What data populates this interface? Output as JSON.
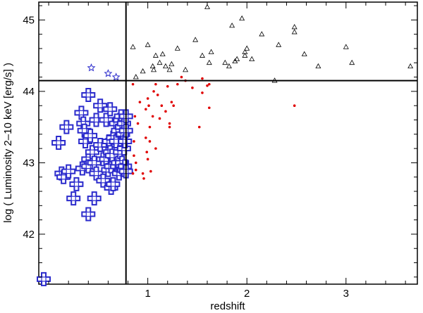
{
  "chart_data": {
    "type": "scatter",
    "title": "",
    "xlabel": "redshift",
    "ylabel": "log ( Luminosity 2–10 keV [erg/s] )",
    "xlim": [
      -0.1,
      3.72
    ],
    "ylim": [
      41.3,
      45.25
    ],
    "x_ticks": [
      1,
      2,
      3
    ],
    "x_tick_labels": [
      "1",
      "2",
      "3"
    ],
    "y_ticks": [
      42,
      43,
      44,
      45
    ],
    "y_tick_labels": [
      "42",
      "43",
      "44",
      "45"
    ],
    "grid": false,
    "legend": "none",
    "reference_lines": {
      "vertical_x": 0.78,
      "horizontal_y": 44.15,
      "color": "#000000"
    },
    "series": [
      {
        "marker": "cross-square",
        "color": "#2b2bcc",
        "points": [
          [
            -0.05,
            41.37
          ],
          [
            0.1,
            43.28
          ],
          [
            0.18,
            43.5
          ],
          [
            0.13,
            42.85
          ],
          [
            0.15,
            42.8
          ],
          [
            0.2,
            42.88
          ],
          [
            0.25,
            42.5
          ],
          [
            0.28,
            42.7
          ],
          [
            0.33,
            43.7
          ],
          [
            0.35,
            43.55
          ],
          [
            0.36,
            43.45
          ],
          [
            0.37,
            43.3
          ],
          [
            0.34,
            42.92
          ],
          [
            0.4,
            43.95
          ],
          [
            0.4,
            43.05
          ],
          [
            0.4,
            42.28
          ],
          [
            0.4,
            42.95
          ],
          [
            0.42,
            43.38
          ],
          [
            0.44,
            43.15
          ],
          [
            0.46,
            43.0
          ],
          [
            0.46,
            42.5
          ],
          [
            0.48,
            43.6
          ],
          [
            0.48,
            42.85
          ],
          [
            0.52,
            43.8
          ],
          [
            0.52,
            43.25
          ],
          [
            0.55,
            43.05
          ],
          [
            0.55,
            42.75
          ],
          [
            0.58,
            43.6
          ],
          [
            0.58,
            43.05
          ],
          [
            0.6,
            43.25
          ],
          [
            0.6,
            42.9
          ],
          [
            0.61,
            43.3
          ],
          [
            0.62,
            43.75
          ],
          [
            0.62,
            43.15
          ],
          [
            0.63,
            42.65
          ],
          [
            0.63,
            42.95
          ],
          [
            0.64,
            43.1
          ],
          [
            0.65,
            42.7
          ],
          [
            0.65,
            43.35
          ],
          [
            0.68,
            43.55
          ],
          [
            0.68,
            43.3
          ],
          [
            0.69,
            42.95
          ],
          [
            0.7,
            43.0
          ],
          [
            0.7,
            43.45
          ],
          [
            0.71,
            42.85
          ],
          [
            0.72,
            43.15
          ],
          [
            0.72,
            43.6
          ],
          [
            0.73,
            43.65
          ],
          [
            0.74,
            43.5
          ],
          [
            0.74,
            43.0
          ],
          [
            0.75,
            42.9
          ],
          [
            0.75,
            43.4
          ],
          [
            0.76,
            42.9
          ],
          [
            0.76,
            43.2
          ],
          [
            0.76,
            43.55
          ],
          [
            0.77,
            43.3
          ],
          [
            0.77,
            42.95
          ],
          [
            0.78,
            43.45
          ],
          [
            0.78,
            43.65
          ],
          [
            0.78,
            42.88
          ]
        ]
      },
      {
        "marker": "star",
        "color": "#2b2bcc",
        "points": [
          [
            0.43,
            44.33
          ],
          [
            0.6,
            44.25
          ],
          [
            0.68,
            44.2
          ]
        ]
      },
      {
        "marker": "dot",
        "color": "#e00000",
        "points": [
          [
            0.85,
            44.1
          ],
          [
            0.86,
            43.1
          ],
          [
            0.87,
            43.65
          ],
          [
            0.86,
            43.3
          ],
          [
            0.85,
            42.85
          ],
          [
            0.88,
            43.0
          ],
          [
            0.88,
            42.9
          ],
          [
            0.9,
            43.55
          ],
          [
            0.92,
            43.85
          ],
          [
            0.95,
            42.85
          ],
          [
            0.96,
            42.78
          ],
          [
            0.98,
            43.75
          ],
          [
            0.98,
            43.35
          ],
          [
            0.99,
            43.15
          ],
          [
            1.0,
            43.05
          ],
          [
            1.0,
            43.9
          ],
          [
            1.01,
            43.8
          ],
          [
            1.02,
            43.5
          ],
          [
            1.02,
            43.3
          ],
          [
            1.03,
            42.88
          ],
          [
            1.05,
            43.65
          ],
          [
            1.06,
            44.0
          ],
          [
            1.08,
            43.2
          ],
          [
            1.08,
            44.1
          ],
          [
            1.1,
            43.95
          ],
          [
            1.12,
            43.62
          ],
          [
            1.14,
            43.8
          ],
          [
            1.18,
            43.72
          ],
          [
            1.2,
            44.07
          ],
          [
            1.22,
            43.5
          ],
          [
            1.22,
            43.55
          ],
          [
            1.24,
            43.85
          ],
          [
            1.26,
            43.8
          ],
          [
            1.3,
            44.1
          ],
          [
            1.34,
            44.2
          ],
          [
            1.38,
            44.15
          ],
          [
            1.45,
            44.05
          ],
          [
            1.52,
            43.5
          ],
          [
            1.55,
            44.18
          ],
          [
            1.55,
            43.98
          ],
          [
            1.6,
            44.08
          ],
          [
            1.62,
            43.77
          ],
          [
            1.62,
            44.1
          ],
          [
            2.48,
            43.8
          ]
        ]
      },
      {
        "marker": "triangle",
        "color": "#000000",
        "points": [
          [
            0.85,
            44.62
          ],
          [
            0.88,
            44.2
          ],
          [
            0.95,
            44.28
          ],
          [
            1.0,
            44.65
          ],
          [
            1.05,
            44.35
          ],
          [
            1.06,
            44.3
          ],
          [
            1.08,
            44.5
          ],
          [
            1.12,
            44.4
          ],
          [
            1.15,
            44.52
          ],
          [
            1.18,
            44.35
          ],
          [
            1.22,
            44.3
          ],
          [
            1.24,
            44.38
          ],
          [
            1.3,
            44.6
          ],
          [
            1.38,
            44.3
          ],
          [
            1.48,
            44.72
          ],
          [
            1.55,
            44.5
          ],
          [
            1.6,
            45.18
          ],
          [
            1.62,
            44.4
          ],
          [
            1.64,
            44.55
          ],
          [
            1.78,
            44.4
          ],
          [
            1.82,
            44.35
          ],
          [
            1.85,
            44.92
          ],
          [
            1.88,
            44.42
          ],
          [
            1.9,
            44.45
          ],
          [
            1.95,
            45.02
          ],
          [
            1.98,
            44.5
          ],
          [
            1.98,
            44.55
          ],
          [
            2.0,
            44.6
          ],
          [
            2.05,
            44.45
          ],
          [
            2.15,
            44.8
          ],
          [
            2.28,
            44.15
          ],
          [
            2.32,
            44.65
          ],
          [
            2.48,
            44.9
          ],
          [
            2.48,
            44.83
          ],
          [
            2.58,
            44.52
          ],
          [
            2.72,
            44.35
          ],
          [
            3.0,
            44.62
          ],
          [
            3.06,
            44.4
          ],
          [
            3.65,
            44.35
          ]
        ]
      }
    ]
  }
}
